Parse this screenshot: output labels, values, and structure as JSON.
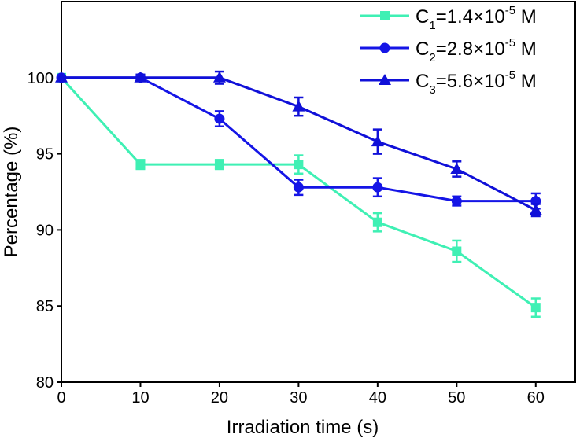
{
  "chart_data": {
    "type": "line",
    "title": "",
    "xlabel": "Irradiation time (s)",
    "ylabel": "Percentage (%)",
    "xlim": [
      0,
      65
    ],
    "ylim": [
      80,
      105
    ],
    "xticks": [
      0,
      10,
      20,
      30,
      40,
      50,
      60
    ],
    "yticks": [
      80,
      85,
      90,
      95,
      100
    ],
    "grid": false,
    "legend_position": "top-right",
    "x": [
      0,
      10,
      20,
      30,
      40,
      50,
      60
    ],
    "series": [
      {
        "name": "C1=1.4×10^-5 M",
        "label": {
          "base": "C",
          "sub": "1",
          "value": "=1.4×10",
          "sup": "-5",
          "unit": " M"
        },
        "marker": "square",
        "color": "#3ff0b4",
        "values": [
          100,
          94.3,
          94.3,
          94.3,
          90.5,
          88.6,
          84.9
        ],
        "errors": [
          0,
          0.3,
          0.3,
          0.6,
          0.6,
          0.7,
          0.6
        ]
      },
      {
        "name": "C2=2.8×10^-5 M",
        "label": {
          "base": "C",
          "sub": "2",
          "value": "=2.8×10",
          "sup": "-5",
          "unit": " M"
        },
        "marker": "circle",
        "color": "#1515e6",
        "values": [
          100,
          100,
          97.3,
          92.8,
          92.8,
          91.9,
          91.9
        ],
        "errors": [
          0,
          0.2,
          0.5,
          0.5,
          0.6,
          0.3,
          0.5
        ]
      },
      {
        "name": "C3=5.6×10^-5 M",
        "label": {
          "base": "C",
          "sub": "3",
          "value": "=5.6×10",
          "sup": "-5",
          "unit": " M"
        },
        "marker": "triangle",
        "color": "#1010d8",
        "values": [
          100,
          100,
          100,
          98.1,
          95.8,
          94.0,
          91.3
        ],
        "errors": [
          0,
          0.2,
          0.4,
          0.6,
          0.8,
          0.5,
          0.4
        ]
      }
    ]
  }
}
